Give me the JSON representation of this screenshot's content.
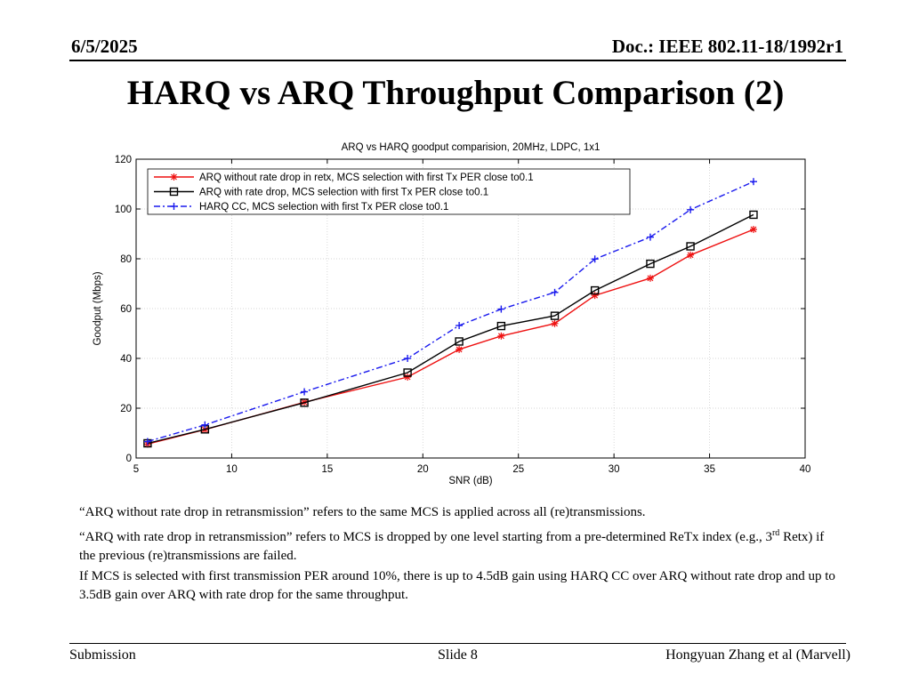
{
  "header": {
    "date": "6/5/2025",
    "doc": "Doc.: IEEE 802.11-18/1992r1"
  },
  "slide_title": "HARQ vs ARQ Throughput Comparison (2)",
  "chart_data": {
    "type": "line",
    "title": "ARQ vs HARQ goodput comparision, 20MHz, LDPC, 1x1",
    "xlabel": "SNR (dB)",
    "ylabel": "Goodput (Mbps)",
    "xlim": [
      5,
      40
    ],
    "ylim": [
      0,
      120
    ],
    "xticks": [
      5,
      10,
      15,
      20,
      25,
      30,
      35,
      40
    ],
    "yticks": [
      0,
      20,
      40,
      60,
      80,
      100,
      120
    ],
    "grid": true,
    "legend_position": "top-left",
    "series": [
      {
        "name": "ARQ without rate drop in retx, MCS selection with first Tx PER close to0.1",
        "color": "#ee1111",
        "line_style": "solid",
        "marker": "asterisk",
        "x": [
          5.6,
          8.6,
          13.8,
          19.2,
          21.9,
          24.1,
          26.9,
          29.0,
          31.9,
          34.0,
          37.3
        ],
        "y": [
          5.6,
          11.4,
          22.4,
          32.5,
          43.6,
          49.0,
          54.0,
          65.3,
          72.2,
          81.5,
          91.8
        ]
      },
      {
        "name": "ARQ with rate drop, MCS selection with first Tx PER close to0.1",
        "color": "#000000",
        "line_style": "solid",
        "marker": "square",
        "x": [
          5.6,
          8.6,
          13.8,
          19.2,
          21.9,
          24.1,
          26.9,
          29.0,
          31.9,
          34.0,
          37.3
        ],
        "y": [
          5.9,
          11.5,
          22.2,
          34.3,
          46.8,
          53.0,
          57.1,
          67.3,
          78.0,
          85.0,
          97.7
        ]
      },
      {
        "name": "HARQ CC, MCS selection with first Tx PER close to0.1",
        "color": "#1a1aee",
        "line_style": "dashdot",
        "marker": "plus",
        "x": [
          5.6,
          8.6,
          13.8,
          19.2,
          21.9,
          24.1,
          26.9,
          29.0,
          31.9,
          34.0,
          37.3
        ],
        "y": [
          6.6,
          13.3,
          26.6,
          40.0,
          53.2,
          59.8,
          66.5,
          79.9,
          88.7,
          99.7,
          111.0
        ]
      }
    ]
  },
  "notes": {
    "p1": "“ARQ without rate drop in retransmission” refers to the same MCS is applied across all (re)transmissions.",
    "p2_a": "“ARQ with rate drop in retransmission” refers to MCS is dropped by one level starting from a pre-determined ReTx index (e.g., 3",
    "p2_sup": "rd",
    "p2_b": " Retx) if the previous (re)transmissions are failed.",
    "p3": "If MCS is selected with first transmission PER around 10%, there is up to 4.5dB gain using HARQ CC over ARQ without rate drop and up to 3.5dB gain over ARQ with rate drop for the same throughput."
  },
  "footer": {
    "left": "Submission",
    "center": "Slide 8",
    "right": "Hongyuan Zhang et al (Marvell)"
  }
}
